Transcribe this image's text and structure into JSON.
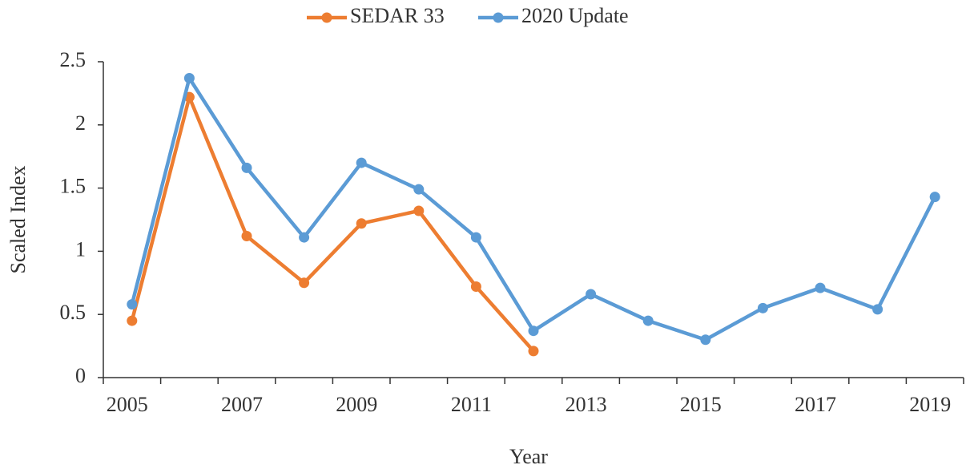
{
  "chart_data": {
    "type": "line",
    "x_label": "Year",
    "y_label": "Scaled Index",
    "categories": [
      "2005",
      null,
      "2007",
      null,
      "2009",
      null,
      "2011",
      null,
      "2013",
      null,
      "2015",
      null,
      "2017",
      null,
      "2019"
    ],
    "series": [
      {
        "name": "SEDAR 33",
        "color": "#ed7d31",
        "values": [
          0.45,
          2.22,
          1.12,
          0.75,
          1.22,
          1.32,
          0.72,
          0.21,
          null,
          null,
          null,
          null,
          null,
          null,
          null
        ]
      },
      {
        "name": "2020 Update",
        "color": "#5b9bd5",
        "values": [
          0.58,
          2.37,
          1.66,
          1.11,
          1.7,
          1.49,
          1.11,
          0.37,
          0.66,
          0.45,
          0.3,
          0.55,
          0.71,
          0.54,
          1.43
        ]
      }
    ],
    "ylim": [
      0,
      2.5
    ],
    "yticks": [
      0,
      0.5,
      1,
      1.5,
      2,
      2.5
    ],
    "grid": false,
    "legend": "top"
  }
}
